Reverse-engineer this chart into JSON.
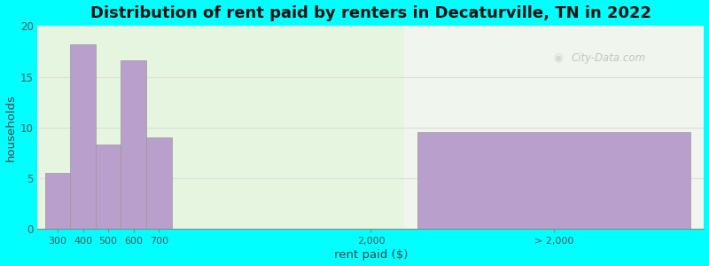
{
  "title": "Distribution of rent paid by renters in Decaturville, TN in 2022",
  "xlabel": "rent paid ($)",
  "ylabel": "households",
  "background_outer": "#00FFFF",
  "background_inner_left": "#e6f5e0",
  "background_inner_right": "#f0f5ee",
  "bar_color": "#b89fcc",
  "bar_edge_color": "#999999",
  "ylim": [
    0,
    20
  ],
  "yticks": [
    0,
    5,
    10,
    15,
    20
  ],
  "grid_color": "#dddddd",
  "values": [
    5.5,
    18.2,
    8.3,
    16.6,
    9.0,
    9.5
  ],
  "xtick_labels": [
    "300",
    "400",
    "500",
    "600",
    "700",
    "2,000",
    "> 2,000"
  ],
  "watermark": "City-Data.com",
  "title_fontsize": 13,
  "axis_label_fontsize": 9.5
}
